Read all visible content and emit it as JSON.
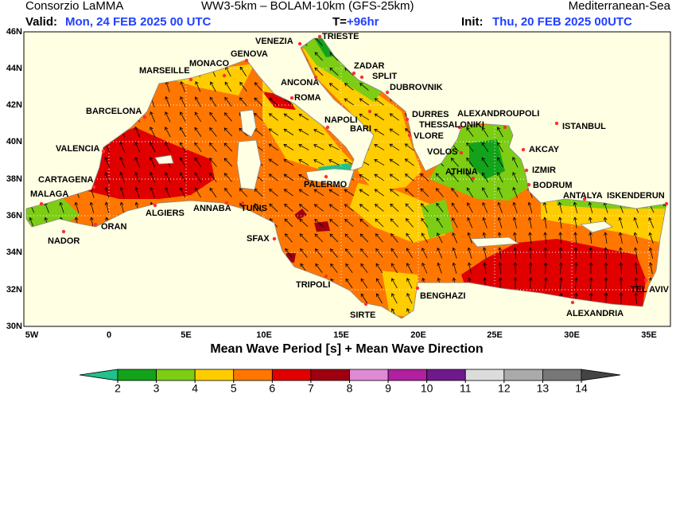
{
  "header": {
    "left": "Consorzio LaMMA",
    "center": "WW3-5km – BOLAM-10km (GFS-25km)",
    "right": "Mediterranean-Sea",
    "valid_label": "Valid:",
    "valid_value": "Mon, 24 FEB 2025  00 UTC",
    "step_label": "T=",
    "step_value": "+96hr",
    "init_label": "Init:",
    "init_value": "Thu, 20 FEB 2025 00UTC"
  },
  "map": {
    "lat_ticks": [
      "46N",
      "44N",
      "42N",
      "40N",
      "38N",
      "36N",
      "34N",
      "32N",
      "30N"
    ],
    "lon_ticks": [
      "5W",
      "0",
      "5E",
      "10E",
      "15E",
      "20E",
      "25E",
      "30E",
      "35E"
    ],
    "cities": [
      "TRIESTE",
      "VENEZIA",
      "ZADAR",
      "SPLIT",
      "DUBROVNIK",
      "GENOVA",
      "MONACO",
      "MARSEILLE",
      "ANCONA",
      "ROMA",
      "BARCELONA",
      "NAPOLI",
      "BARI",
      "DURRES",
      "THESSALONIKI",
      "ALEXANDROUPOLI",
      "ISTANBUL",
      "VALENCIA",
      "VLORE",
      "VOLOS",
      "AKCAY",
      "IZMIR",
      "ATHINA",
      "BODRUM",
      "CARTAGENA",
      "PALERMO",
      "ANTALYA",
      "ISKENDERUN",
      "MALAGA",
      "ANNABA",
      "TUNIS",
      "ALGIERS",
      "ORAN",
      "NADOR",
      "SFAX",
      "TRIPOLI",
      "BENGHAZI",
      "SIRTE",
      "ALEXANDRIA",
      "TEL AVIV"
    ],
    "caption": "Mean Wave Period [s] + Mean Wave Direction"
  },
  "colorbar": {
    "ticks": [
      2,
      3,
      4,
      5,
      6,
      7,
      8,
      9,
      10,
      11,
      12,
      13,
      14
    ],
    "colors": [
      "#1fc28a",
      "#12a31a",
      "#7ccd14",
      "#ffcc00",
      "#ff7700",
      "#e00000",
      "#9e0010",
      "#e08ad4",
      "#b020a0",
      "#6e1a8c",
      "#dcdcdc",
      "#aaaaaa",
      "#777777",
      "#444444"
    ]
  }
}
